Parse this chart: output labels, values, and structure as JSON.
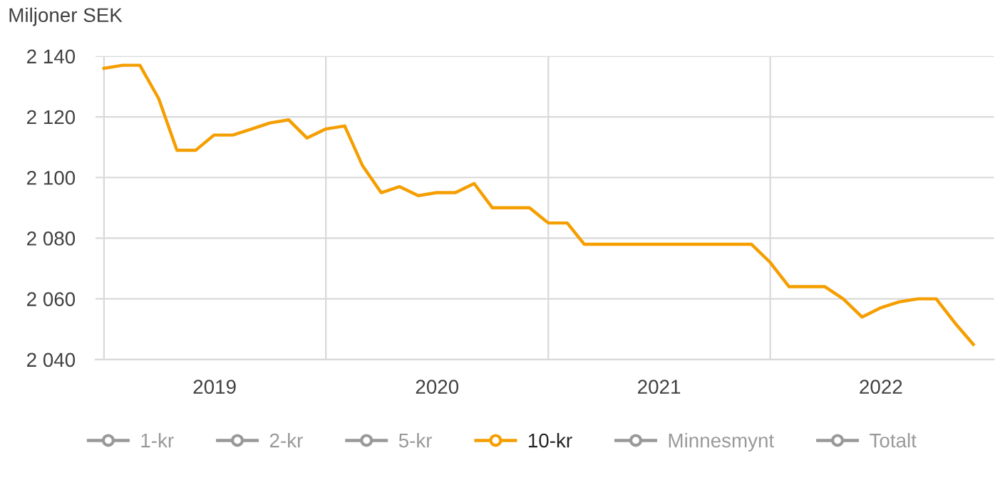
{
  "chart_data": {
    "type": "line",
    "ylabel": "Miljoner SEK",
    "x": [
      "2019-01",
      "2019-02",
      "2019-03",
      "2019-04",
      "2019-05",
      "2019-06",
      "2019-07",
      "2019-08",
      "2019-09",
      "2019-10",
      "2019-11",
      "2019-12",
      "2020-01",
      "2020-02",
      "2020-03",
      "2020-04",
      "2020-05",
      "2020-06",
      "2020-07",
      "2020-08",
      "2020-09",
      "2020-10",
      "2020-11",
      "2020-12",
      "2021-01",
      "2021-02",
      "2021-03",
      "2021-04",
      "2021-05",
      "2021-06",
      "2021-07",
      "2021-08",
      "2021-09",
      "2021-10",
      "2021-11",
      "2021-12",
      "2022-01",
      "2022-02",
      "2022-03",
      "2022-04",
      "2022-05",
      "2022-06",
      "2022-07",
      "2022-08",
      "2022-09",
      "2022-10",
      "2022-11",
      "2022-12"
    ],
    "series": [
      {
        "name": "1-kr",
        "color": "#999999",
        "values": [
          null,
          null,
          null,
          null,
          null,
          null,
          null,
          null,
          null,
          null,
          null,
          null,
          null,
          null,
          null,
          null,
          null,
          null,
          null,
          null,
          null,
          null,
          null,
          null,
          null,
          null,
          null,
          null,
          null,
          null,
          null,
          null,
          null,
          null,
          null,
          null,
          null,
          null,
          null,
          null,
          null,
          null,
          null,
          null,
          null,
          null,
          null,
          null
        ]
      },
      {
        "name": "2-kr",
        "color": "#999999",
        "values": [
          null,
          null,
          null,
          null,
          null,
          null,
          null,
          null,
          null,
          null,
          null,
          null,
          null,
          null,
          null,
          null,
          null,
          null,
          null,
          null,
          null,
          null,
          null,
          null,
          null,
          null,
          null,
          null,
          null,
          null,
          null,
          null,
          null,
          null,
          null,
          null,
          null,
          null,
          null,
          null,
          null,
          null,
          null,
          null,
          null,
          null,
          null,
          null
        ]
      },
      {
        "name": "5-kr",
        "color": "#999999",
        "values": [
          null,
          null,
          null,
          null,
          null,
          null,
          null,
          null,
          null,
          null,
          null,
          null,
          null,
          null,
          null,
          null,
          null,
          null,
          null,
          null,
          null,
          null,
          null,
          null,
          null,
          null,
          null,
          null,
          null,
          null,
          null,
          null,
          null,
          null,
          null,
          null,
          null,
          null,
          null,
          null,
          null,
          null,
          null,
          null,
          null,
          null,
          null,
          null
        ]
      },
      {
        "name": "10-kr",
        "color": "#f59e00",
        "values": [
          2136,
          2137,
          2137,
          2126,
          2109,
          2109,
          2114,
          2114,
          2116,
          2118,
          2119,
          2113,
          2116,
          2117,
          2104,
          2095,
          2097,
          2094,
          2095,
          2095,
          2098,
          2090,
          2090,
          2090,
          2085,
          2085,
          2078,
          2078,
          2078,
          2078,
          2078,
          2078,
          2078,
          2078,
          2078,
          2078,
          2072,
          2064,
          2064,
          2064,
          2060,
          2054,
          2057,
          2059,
          2060,
          2060,
          2052,
          2045
        ]
      },
      {
        "name": "Minnesmynt",
        "color": "#999999",
        "values": [
          null,
          null,
          null,
          null,
          null,
          null,
          null,
          null,
          null,
          null,
          null,
          null,
          null,
          null,
          null,
          null,
          null,
          null,
          null,
          null,
          null,
          null,
          null,
          null,
          null,
          null,
          null,
          null,
          null,
          null,
          null,
          null,
          null,
          null,
          null,
          null,
          null,
          null,
          null,
          null,
          null,
          null,
          null,
          null,
          null,
          null,
          null,
          null
        ]
      },
      {
        "name": "Totalt",
        "color": "#999999",
        "values": [
          null,
          null,
          null,
          null,
          null,
          null,
          null,
          null,
          null,
          null,
          null,
          null,
          null,
          null,
          null,
          null,
          null,
          null,
          null,
          null,
          null,
          null,
          null,
          null,
          null,
          null,
          null,
          null,
          null,
          null,
          null,
          null,
          null,
          null,
          null,
          null,
          null,
          null,
          null,
          null,
          null,
          null,
          null,
          null,
          null,
          null,
          null,
          null
        ]
      }
    ],
    "xlim": [
      "2018-12-18",
      "2023-01-04"
    ],
    "xticks": [
      {
        "value": "2019-01-01",
        "label": null
      },
      {
        "value": "2019-07-02",
        "label": "2019"
      },
      {
        "value": "2020-01-01",
        "label": null
      },
      {
        "value": "2020-07-02",
        "label": "2020"
      },
      {
        "value": "2021-01-01",
        "label": null
      },
      {
        "value": "2021-07-02",
        "label": "2021"
      },
      {
        "value": "2022-01-01",
        "label": null
      },
      {
        "value": "2022-07-02",
        "label": "2022"
      }
    ],
    "ylim": [
      2040,
      2140
    ],
    "yticks": [
      {
        "value": 2040,
        "label": "2 040"
      },
      {
        "value": 2060,
        "label": "2 060"
      },
      {
        "value": 2080,
        "label": "2 080"
      },
      {
        "value": 2100,
        "label": "2 100"
      },
      {
        "value": 2120,
        "label": "2 120"
      },
      {
        "value": 2140,
        "label": "2 140"
      }
    ],
    "grid": true,
    "legend": "bottom"
  }
}
